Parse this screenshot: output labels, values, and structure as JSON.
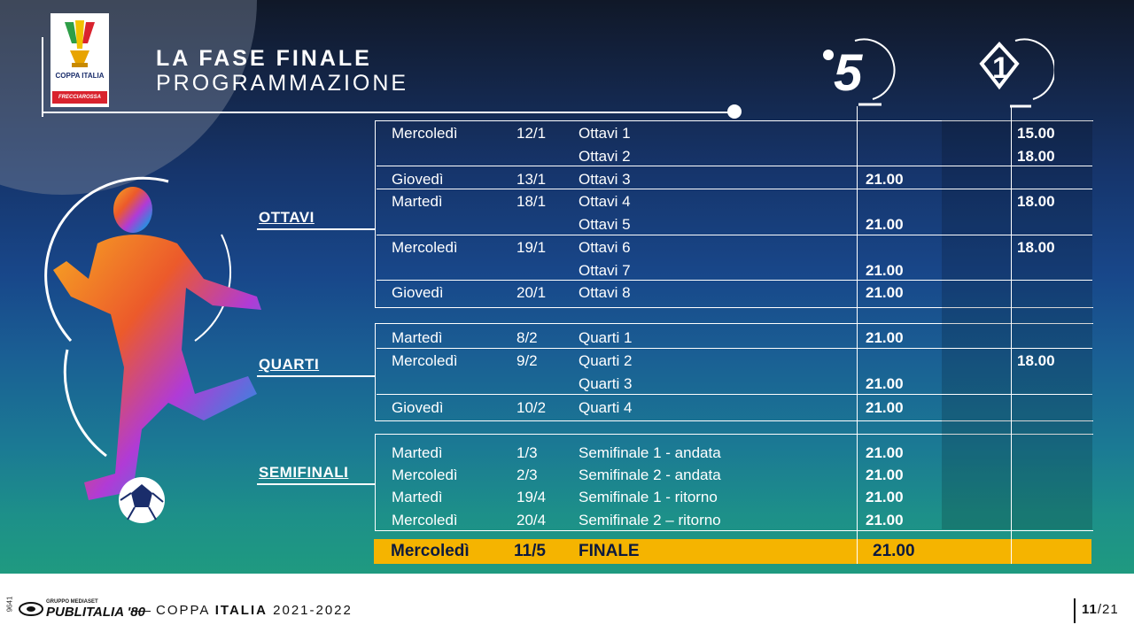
{
  "header": {
    "title": "LA FASE FINALE",
    "subtitle": "PROGRAMMAZIONE",
    "logo_text": "COPPA ITALIA",
    "logo_sponsor": "FRECCIAROSSA"
  },
  "channels": [
    {
      "name": "canale-5-icon",
      "label": "5"
    },
    {
      "name": "italia-1-icon",
      "label": "1"
    }
  ],
  "sections": [
    {
      "label": "OTTAVI"
    },
    {
      "label": "QUARTI"
    },
    {
      "label": "SEMIFINALI"
    }
  ],
  "schedule": [
    {
      "day": "Mercoledì",
      "date": "12/1",
      "match": "Ottavi 1",
      "c5": "",
      "i1": "15.00"
    },
    {
      "day": "",
      "date": "",
      "match": "Ottavi 2",
      "c5": "",
      "i1": "18.00"
    },
    {
      "day": "Giovedì",
      "date": "13/1",
      "match": "Ottavi 3",
      "c5": "21.00",
      "i1": ""
    },
    {
      "day": "Martedì",
      "date": "18/1",
      "match": "Ottavi 4",
      "c5": "",
      "i1": "18.00"
    },
    {
      "day": "",
      "date": "",
      "match": "Ottavi 5",
      "c5": "21.00",
      "i1": ""
    },
    {
      "day": "Mercoledì",
      "date": "19/1",
      "match": "Ottavi 6",
      "c5": "",
      "i1": "18.00"
    },
    {
      "day": "",
      "date": "",
      "match": "Ottavi 7",
      "c5": "21.00",
      "i1": ""
    },
    {
      "day": "Giovedì",
      "date": "20/1",
      "match": "Ottavi 8",
      "c5": "21.00",
      "i1": ""
    },
    {
      "day": "Martedì",
      "date": "8/2",
      "match": "Quarti 1",
      "c5": "21.00",
      "i1": ""
    },
    {
      "day": "Mercoledì",
      "date": "9/2",
      "match": "Quarti 2",
      "c5": "",
      "i1": "18.00"
    },
    {
      "day": "",
      "date": "",
      "match": "Quarti 3",
      "c5": "21.00",
      "i1": ""
    },
    {
      "day": "Giovedì",
      "date": "10/2",
      "match": "Quarti 4",
      "c5": "21.00",
      "i1": ""
    },
    {
      "day": "Martedì",
      "date": "1/3",
      "match": "Semifinale 1 - andata",
      "c5": "21.00",
      "i1": ""
    },
    {
      "day": "Mercoledì",
      "date": "2/3",
      "match": "Semifinale 2 - andata",
      "c5": "21.00",
      "i1": ""
    },
    {
      "day": "Martedì",
      "date": "19/4",
      "match": "Semifinale 1 - ritorno",
      "c5": "21.00",
      "i1": ""
    },
    {
      "day": "Mercoledì",
      "date": "20/4",
      "match": "Semifinale 2 – ritorno",
      "c5": "21.00",
      "i1": ""
    }
  ],
  "final": {
    "day": "Mercoledì",
    "date": "11/5",
    "match": "FINALE",
    "c5": "21.00"
  },
  "footer": {
    "group": "GRUPPO MEDIASET",
    "brand": "PUBLITALIA '80",
    "code": "9641",
    "title_a": "COPPA ",
    "title_b": "ITALIA",
    "title_c": " 2021-2022",
    "page_a": "11",
    "page_b": "/21"
  },
  "colors": {
    "final_bar": "#f5b400",
    "accent_red": "#d9232e"
  }
}
